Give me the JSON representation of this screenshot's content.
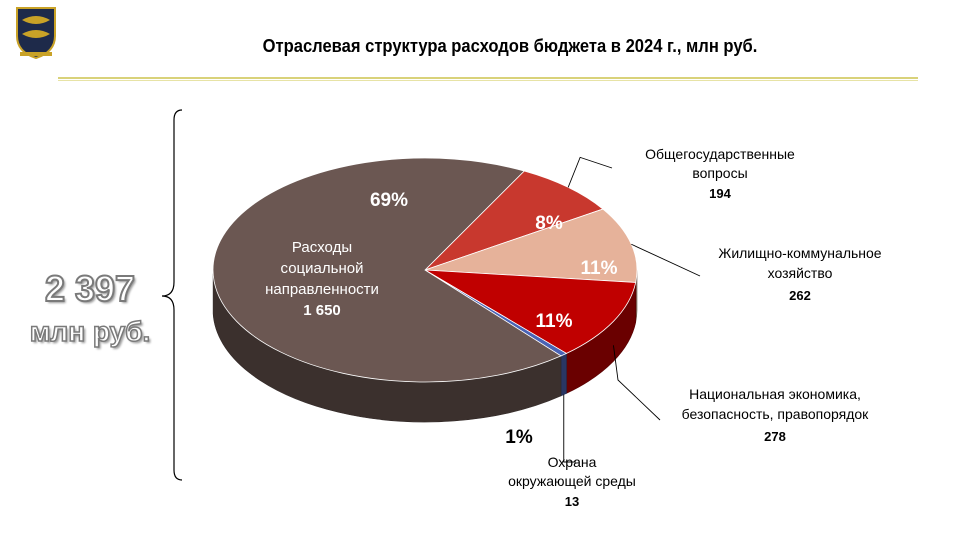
{
  "title": "Отраслевая структура расходов бюджета в 2024 г., млн руб.",
  "total": {
    "value": "2 397",
    "unit": "млн руб."
  },
  "colors": {
    "social": "#6b5752",
    "general": "#c8382e",
    "housing": "#e6b29a",
    "economy": "#c00000",
    "environment": "#4a63b5"
  },
  "chart_data": {
    "type": "pie",
    "title": "Отраслевая структура расходов бюджета в 2024 г., млн руб.",
    "slices": [
      {
        "id": "social",
        "label_lines": [
          "Расходы",
          "социальной",
          "направленности"
        ],
        "value": 1650,
        "value_text": "1 650",
        "percent": "69%"
      },
      {
        "id": "general",
        "label_lines": [
          "Общегосударственные",
          "вопросы"
        ],
        "value": 194,
        "value_text": "194",
        "percent": "8%"
      },
      {
        "id": "housing",
        "label_lines": [
          "Жилищно-коммунальное",
          "хозяйство"
        ],
        "value": 262,
        "value_text": "262",
        "percent": "11%"
      },
      {
        "id": "economy",
        "label_lines": [
          "Национальная экономика,",
          "безопасность, правопорядок"
        ],
        "value": 278,
        "value_text": "278",
        "percent": "11%"
      },
      {
        "id": "environment",
        "label_lines": [
          "Охрана",
          "окружающей среды"
        ],
        "value": 13,
        "value_text": "13",
        "percent": "1%"
      }
    ]
  }
}
